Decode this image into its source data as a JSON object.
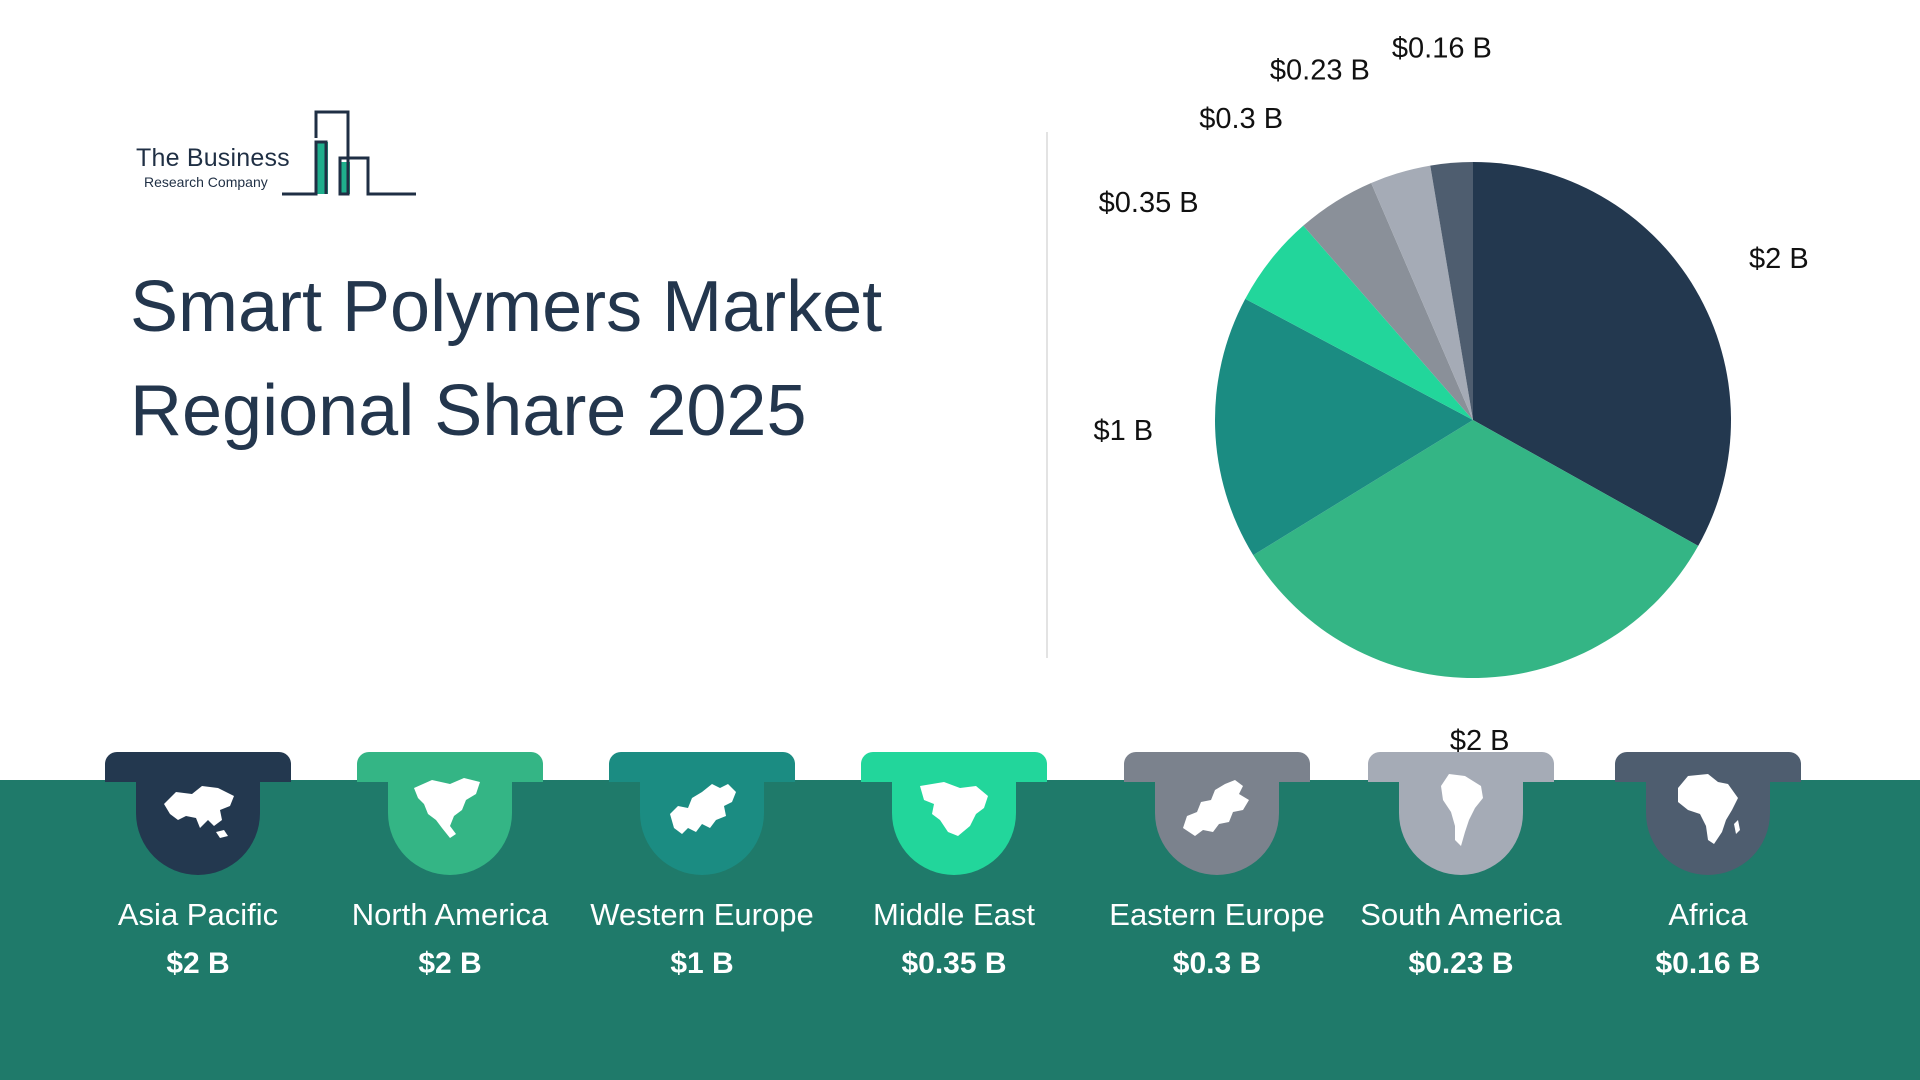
{
  "logo": {
    "name": "The Business",
    "sub": "Research Company",
    "accent": "#1fae8c",
    "ink": "#1f2f44"
  },
  "header": {
    "title_line1": "Smart Polymers Market",
    "title_line2": "Regional Share 2025"
  },
  "chart_data": {
    "type": "pie",
    "title": "Smart Polymers Market Regional Share 2025",
    "categories": [
      "Asia Pacific",
      "North America",
      "Western Europe",
      "Middle East",
      "Eastern Europe",
      "South America",
      "Africa"
    ],
    "values": [
      2,
      2,
      1,
      0.35,
      0.3,
      0.23,
      0.16
    ],
    "data_labels": [
      "$2 B",
      "$2 B",
      "$1 B",
      "$0.35 B",
      "$0.3 B",
      "$0.23 B",
      "$0.16 B"
    ],
    "colors": [
      "#23384f",
      "#34b585",
      "#1b8c82",
      "#22d69b",
      "#8a9099",
      "#a5abb6",
      "#4e5d6f"
    ],
    "start": "12 o'clock, clockwise",
    "legend": "bottom"
  },
  "regions": [
    {
      "name": "Asia Pacific",
      "value": "$2 B",
      "color": "#23384f",
      "icon": "asia-map-icon"
    },
    {
      "name": "North America",
      "value": "$2 B",
      "color": "#34b585",
      "icon": "north-america-map-icon"
    },
    {
      "name": "Western Europe",
      "value": "$1 B",
      "color": "#1b8c82",
      "icon": "western-europe-map-icon"
    },
    {
      "name": "Middle East",
      "value": "$0.35 B",
      "color": "#22d69b",
      "icon": "middle-east-map-icon"
    },
    {
      "name": "Eastern Europe",
      "value": "$0.3 B",
      "color": "#7b828d",
      "icon": "eastern-europe-map-icon"
    },
    {
      "name": "South America",
      "value": "$0.23 B",
      "color": "#a5abb6",
      "icon": "south-america-map-icon"
    },
    {
      "name": "Africa",
      "value": "$0.16 B",
      "color": "#4e5d6f",
      "icon": "africa-map-icon"
    }
  ],
  "band_color": "#1f7a6a"
}
